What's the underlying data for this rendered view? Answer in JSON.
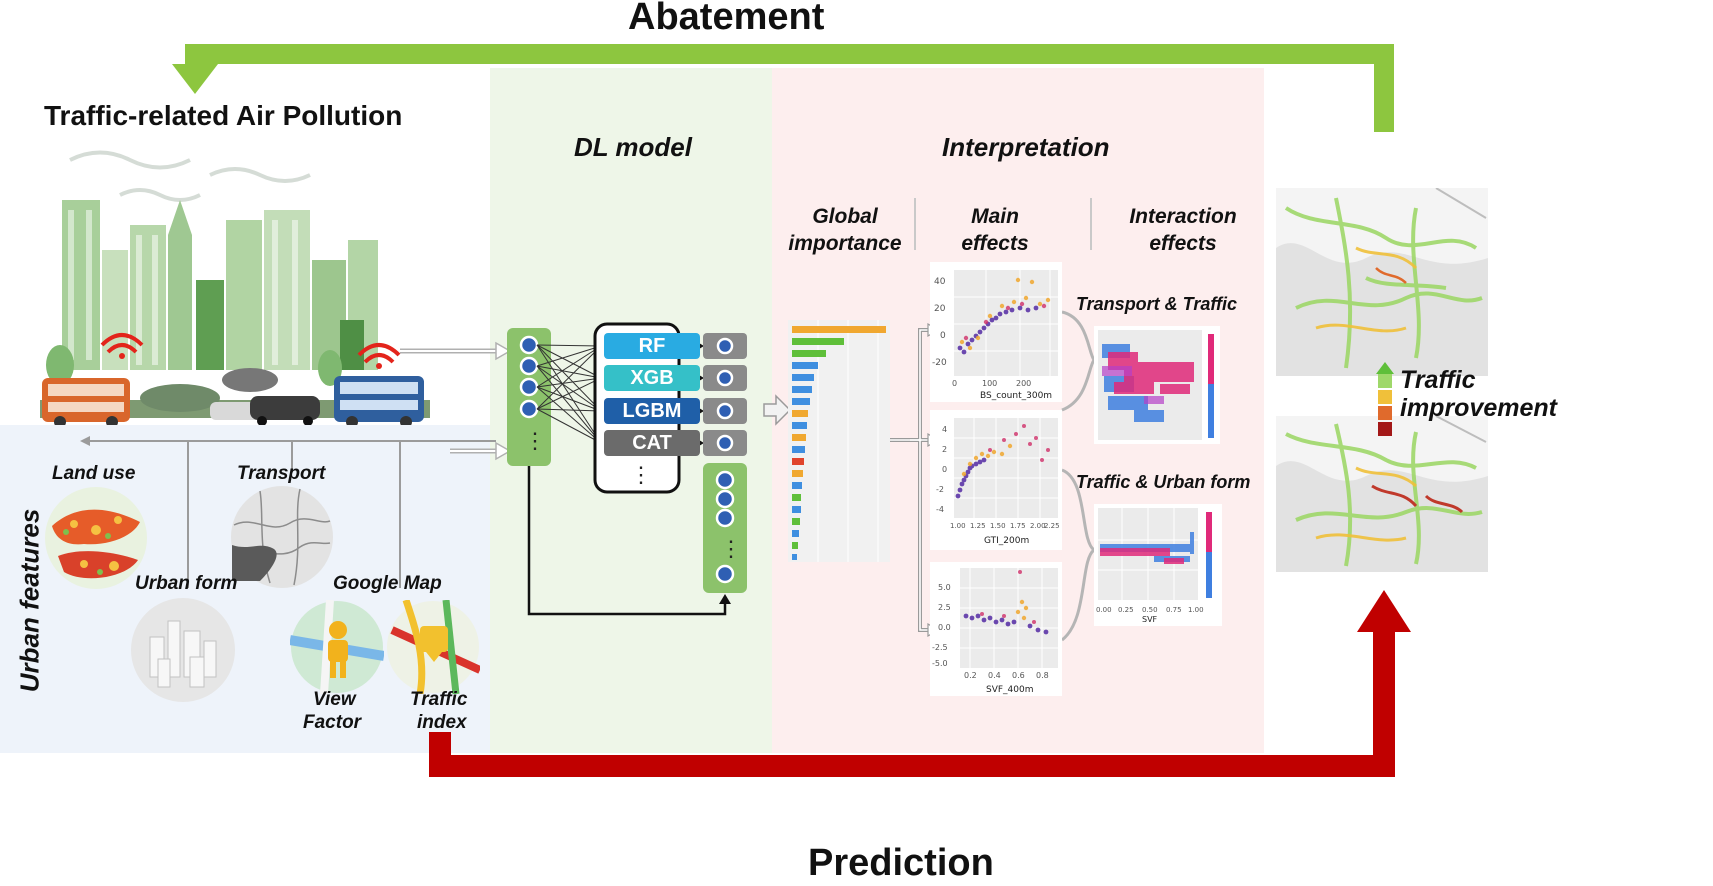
{
  "colors": {
    "abatement_arrow": "#8dc63f",
    "prediction_arrow": "#c00000",
    "dl_panel": "#eef6e8",
    "interp_panel": "#fdeeee",
    "urban_panel": "#eef3fa",
    "node_green": "#8cc26b",
    "node_gray": "#8a8a8a",
    "rf": "#29abe2",
    "xgb": "#35c0c8",
    "lgbm": "#1f5fa8",
    "cat": "#6b6b6b"
  },
  "top_loop": {
    "label": "Abatement"
  },
  "bottom_loop": {
    "label": "Prediction"
  },
  "pollution": {
    "title": "Traffic-related Air Pollution"
  },
  "urban": {
    "section_label": "Urban features",
    "land_use": "Land use",
    "transport": "Transport",
    "urban_form": "Urban form",
    "google_map": "Google Map",
    "view_factor_line1": "View",
    "view_factor_line2": "Factor",
    "traffic_index_line1": "Traffic",
    "traffic_index_line2": "index"
  },
  "dl": {
    "title": "DL model",
    "models": [
      "RF",
      "XGB",
      "LGBM",
      "CAT"
    ],
    "ellipsis": "⋮"
  },
  "interpretation": {
    "title": "Interpretation",
    "global_line1": "Global",
    "global_line2": "importance",
    "main_line1": "Main",
    "main_line2": "effects",
    "interaction_line1": "Interaction",
    "interaction_line2": "effects",
    "pair1": "Transport & Traffic",
    "pair2": "Traffic & Urban form",
    "plot1": {
      "xlabel": "BS_count_300m",
      "xticks": [
        "0",
        "100",
        "200"
      ],
      "yticks": [
        "40",
        "20",
        "0",
        "-20"
      ]
    },
    "plot2": {
      "xlabel": "GTI_200m",
      "xticks": [
        "1.00",
        "1.25",
        "1.50",
        "1.75",
        "2.00",
        "2.25"
      ],
      "yticks": [
        "4",
        "2",
        "0",
        "-2",
        "-4"
      ]
    },
    "plot3": {
      "xlabel": "SVF_400m",
      "xticks": [
        "0.2",
        "0.4",
        "0.6",
        "0.8"
      ],
      "yticks": [
        "5.0",
        "2.5",
        "0.0",
        "-2.5",
        "-5.0"
      ]
    },
    "plot4": {
      "xlabel": "SVF",
      "xticks": [
        "0.00",
        "0.25",
        "0.50",
        "0.75",
        "1.00"
      ]
    }
  },
  "improvement": {
    "line1": "Traffic",
    "line2": "improvement"
  }
}
